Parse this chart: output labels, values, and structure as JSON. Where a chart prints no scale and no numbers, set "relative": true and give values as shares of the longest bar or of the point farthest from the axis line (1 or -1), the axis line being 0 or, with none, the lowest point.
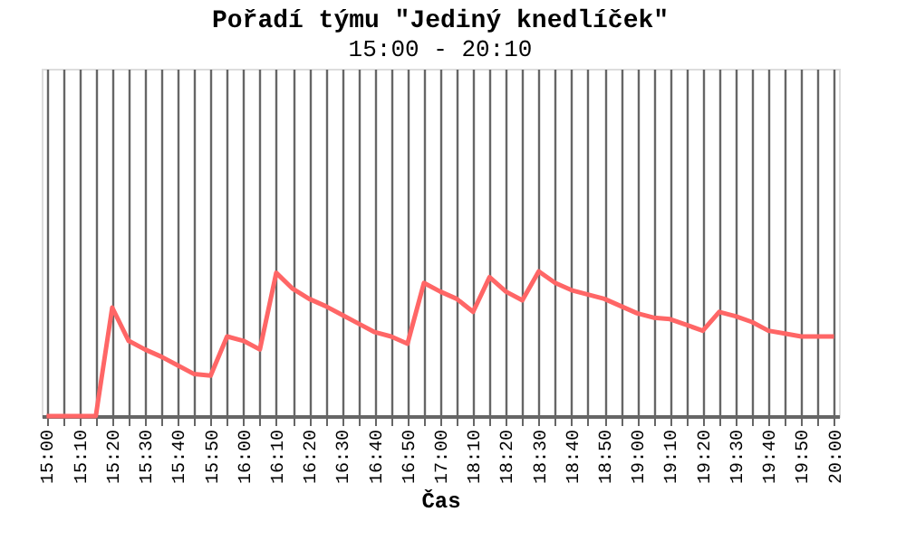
{
  "chart_data": {
    "type": "line",
    "title": "Pořadí týmu \"Jediný knedlíček\"",
    "subtitle": "15:00 - 20:10",
    "xlabel": "Čas",
    "categories": [
      "15:00",
      null,
      "15:10",
      null,
      "15:20",
      null,
      "15:30",
      null,
      "15:40",
      null,
      "15:50",
      null,
      "16:00",
      null,
      "16:10",
      null,
      "16:20",
      null,
      "16:30",
      null,
      "16:40",
      null,
      "16:50",
      null,
      "17:00",
      null,
      "18:10",
      null,
      "18:20",
      null,
      "18:30",
      null,
      "18:40",
      null,
      "18:50",
      null,
      "19:00",
      null,
      "19:10",
      null,
      "19:20",
      null,
      "19:30",
      null,
      "19:40",
      null,
      "19:50",
      null,
      "20:00"
    ],
    "series": [
      {
        "color": "#ff6666",
        "values": [
          0,
          0,
          0,
          0,
          0.75,
          0.52,
          0.46,
          0.41,
          0.35,
          0.29,
          0.28,
          0.55,
          0.52,
          0.46,
          0.99,
          0.88,
          0.81,
          0.76,
          0.7,
          0.64,
          0.58,
          0.55,
          0.5,
          0.92,
          0.86,
          0.81,
          0.72,
          0.96,
          0.86,
          0.8,
          1,
          0.92,
          0.87,
          0.84,
          0.81,
          0.76,
          0.71,
          0.68,
          0.67,
          0.63,
          0.59,
          0.72,
          0.69,
          0.65,
          0.59,
          0.57,
          0.55,
          0.55,
          0.55
        ]
      }
    ],
    "relative": true,
    "grid": "x",
    "tick_labels": "x",
    "marker": "none",
    "line_style": "solid"
  }
}
